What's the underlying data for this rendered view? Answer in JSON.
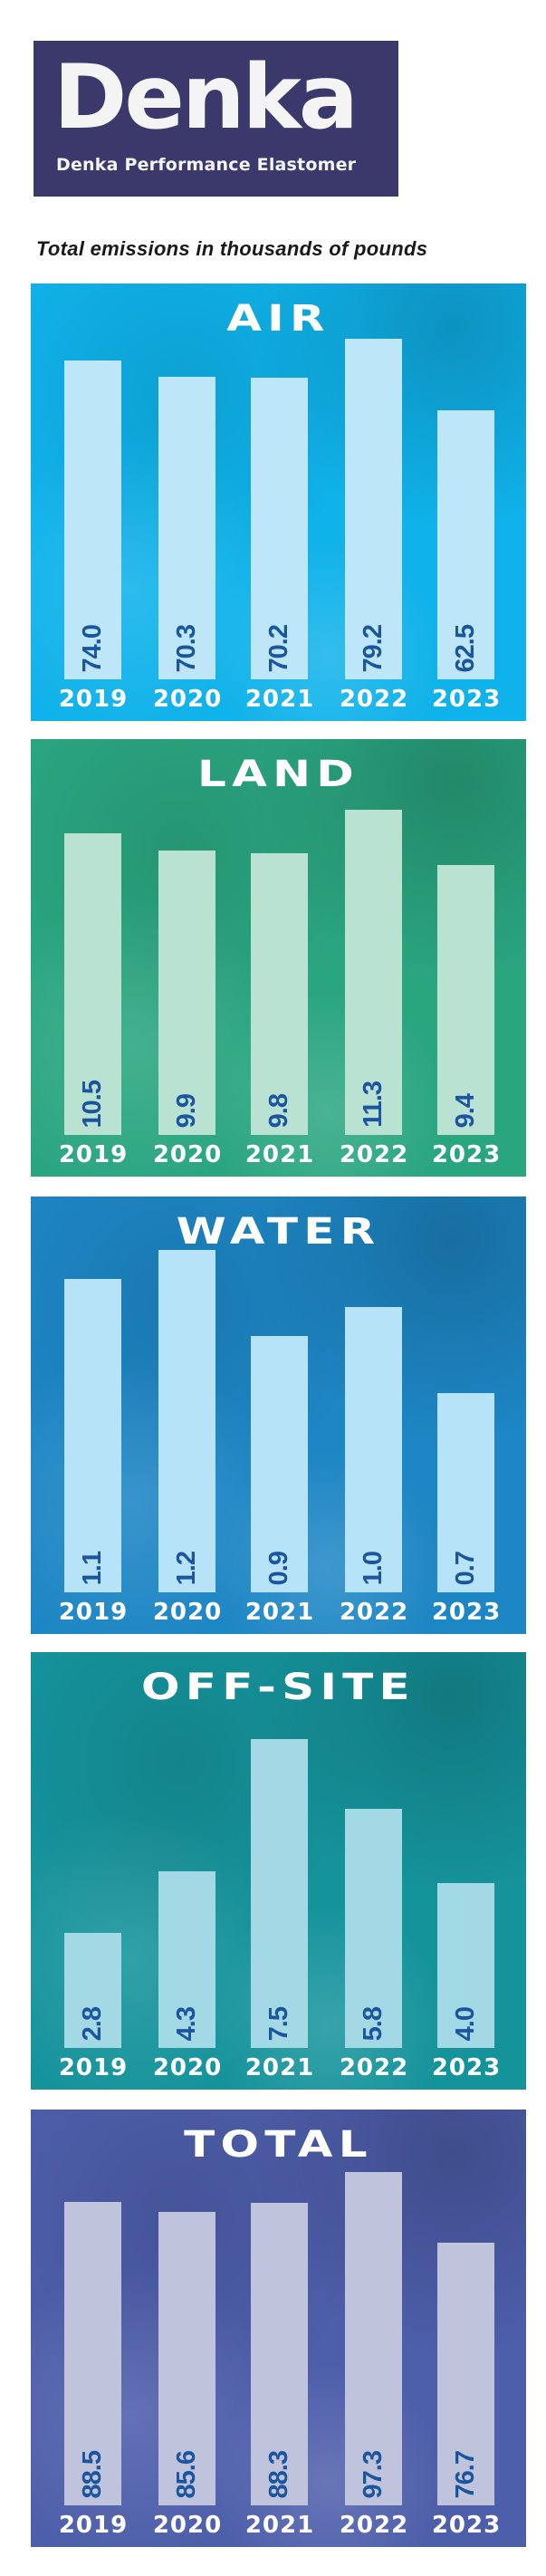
{
  "logo": {
    "wordmark": "Denka",
    "tagline": "Denka Performance Elastomer"
  },
  "subtitle": "Total emissions in thousands of pounds",
  "chart_data": [
    {
      "type": "bar",
      "title": "AIR",
      "categories": [
        "2019",
        "2020",
        "2021",
        "2022",
        "2023"
      ],
      "values": [
        74.0,
        70.3,
        70.2,
        79.2,
        62.5
      ],
      "labels": [
        "74.0",
        "70.3",
        "70.2",
        "79.2",
        "62.5"
      ],
      "ylim": [
        0,
        84.2
      ],
      "background": "#0fb2ea",
      "bar_color": "#bde6f8",
      "label_color": "#1b55a0"
    },
    {
      "type": "bar",
      "title": "LAND",
      "categories": [
        "2019",
        "2020",
        "2021",
        "2022",
        "2023"
      ],
      "values": [
        10.5,
        9.9,
        9.8,
        11.3,
        9.4
      ],
      "labels": [
        "10.5",
        "9.9",
        "9.8",
        "11.3",
        "9.4"
      ],
      "ylim": [
        0,
        12.6
      ],
      "background": "#2aa67f",
      "bar_color": "#b9e2d3",
      "label_color": "#1b55a0"
    },
    {
      "type": "bar",
      "title": "WATER",
      "categories": [
        "2019",
        "2020",
        "2021",
        "2022",
        "2023"
      ],
      "values": [
        1.1,
        1.2,
        0.9,
        1.0,
        0.7
      ],
      "labels": [
        "1.1",
        "1.2",
        "0.9",
        "1.0",
        "0.7"
      ],
      "ylim": [
        0,
        1.27
      ],
      "background": "#1d86c4",
      "bar_color": "#b6e3f8",
      "label_color": "#1b55a0"
    },
    {
      "type": "bar",
      "title": "OFF-SITE",
      "categories": [
        "2019",
        "2020",
        "2021",
        "2022",
        "2023"
      ],
      "values": [
        2.8,
        4.3,
        7.5,
        5.8,
        4.0
      ],
      "labels": [
        "2.8",
        "4.3",
        "7.5",
        "5.8",
        "4.0"
      ],
      "ylim": [
        0,
        8.8
      ],
      "background": "#15939b",
      "bar_color": "#a2d9e5",
      "label_color": "#1b55a0"
    },
    {
      "type": "bar",
      "title": "TOTAL",
      "categories": [
        "2019",
        "2020",
        "2021",
        "2022",
        "2023"
      ],
      "values": [
        88.5,
        85.6,
        88.3,
        97.3,
        76.7
      ],
      "labels": [
        "88.5",
        "85.6",
        "88.3",
        "97.3",
        "76.7"
      ],
      "ylim": [
        0,
        105.8
      ],
      "background": "#4d5eaa",
      "bar_color": "#bfc4dc",
      "label_color": "#1b55a0"
    }
  ]
}
